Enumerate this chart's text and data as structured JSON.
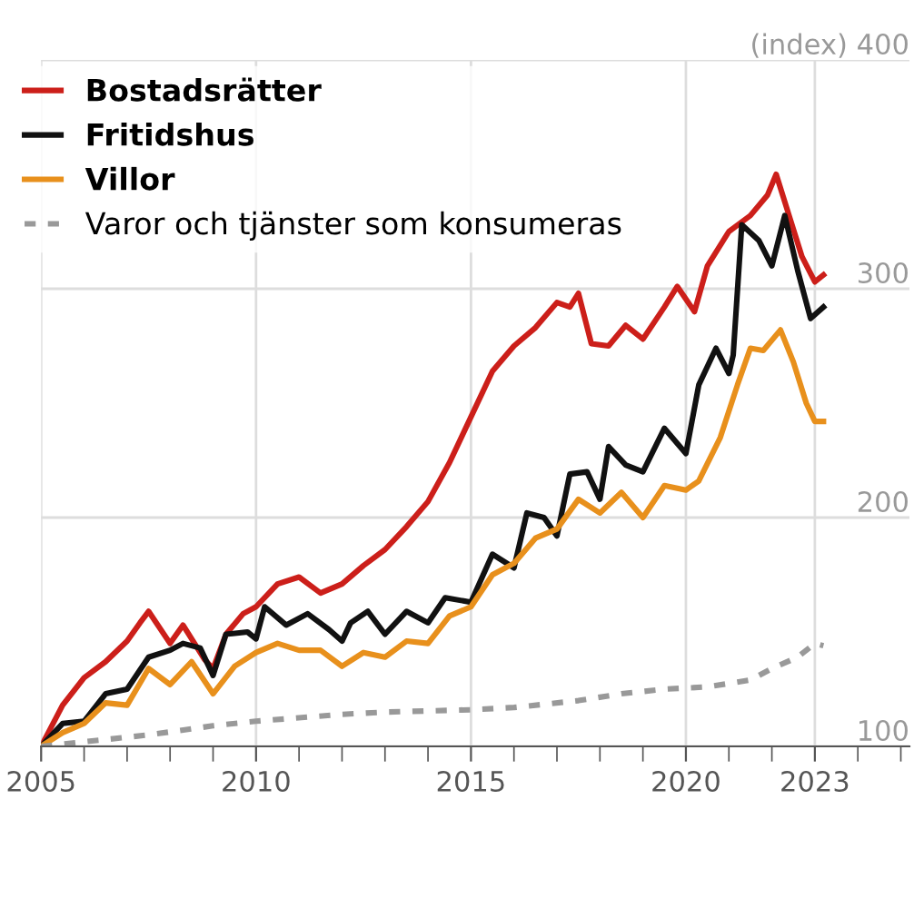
{
  "chart_data": {
    "type": "line",
    "xlim": [
      2005,
      2025.2
    ],
    "xticks": [
      2005,
      2010,
      2015,
      2020,
      2023
    ],
    "ylim": [
      100,
      400
    ],
    "yticks": [
      100,
      200,
      300,
      {
        "value": 400,
        "label": "(index) 400"
      }
    ],
    "grid": true,
    "legend": "top left",
    "line_style": "solid",
    "series": [
      {
        "name": "Bostadsrätter",
        "color": "#cc1f1a",
        "x": [
          2005,
          2005.5,
          2006,
          2006.5,
          2007,
          2007.3,
          2007.5,
          2008,
          2008.3,
          2008.8,
          2009,
          2009.3,
          2009.7,
          2010,
          2010.5,
          2011,
          2011.5,
          2012,
          2012.5,
          2013,
          2013.5,
          2014,
          2014.5,
          2015,
          2015.5,
          2016,
          2016.5,
          2017,
          2017.3,
          2017.5,
          2017.8,
          2018.2,
          2018.6,
          2019,
          2019.5,
          2019.8,
          2020.2,
          2020.5,
          2021,
          2021.5,
          2021.9,
          2022.1,
          2022.4,
          2022.7,
          2023,
          2023.2
        ],
        "values": [
          100,
          118,
          130,
          137,
          146,
          154,
          159,
          145,
          153,
          138,
          134,
          149,
          158,
          161,
          171,
          174,
          167,
          171,
          179,
          186,
          196,
          207,
          224,
          244,
          264,
          275,
          283,
          294,
          292,
          298,
          276,
          275,
          284,
          278,
          292,
          301,
          290,
          310,
          325,
          332,
          341,
          350,
          332,
          314,
          303,
          306
        ]
      },
      {
        "name": "Fritidshus",
        "color": "#111111",
        "x": [
          2005,
          2005.5,
          2006,
          2006.5,
          2007,
          2007.5,
          2008,
          2008.3,
          2008.7,
          2009,
          2009.3,
          2009.8,
          2010,
          2010.2,
          2010.7,
          2011.2,
          2011.7,
          2012,
          2012.2,
          2012.6,
          2013,
          2013.5,
          2014,
          2014.4,
          2015,
          2015.5,
          2016,
          2016.3,
          2016.7,
          2017,
          2017.3,
          2017.7,
          2018,
          2018.2,
          2018.6,
          2019,
          2019.5,
          2020,
          2020.3,
          2020.7,
          2021,
          2021.1,
          2021.3,
          2021.7,
          2022,
          2022.3,
          2022.6,
          2022.9,
          2023.2
        ],
        "values": [
          100,
          110,
          111,
          123,
          125,
          139,
          142,
          145,
          143,
          131,
          149,
          150,
          147,
          161,
          153,
          158,
          151,
          146,
          154,
          159,
          149,
          159,
          154,
          165,
          163,
          184,
          178,
          202,
          200,
          192,
          219,
          220,
          208,
          231,
          223,
          220,
          239,
          228,
          258,
          274,
          263,
          271,
          328,
          321,
          310,
          332,
          308,
          287,
          292
        ]
      },
      {
        "name": "Villor",
        "color": "#e8901c",
        "x": [
          2005,
          2005.5,
          2006,
          2006.5,
          2007,
          2007.5,
          2008,
          2008.5,
          2009,
          2009.5,
          2010,
          2010.5,
          2011,
          2011.5,
          2012,
          2012.5,
          2013,
          2013.5,
          2014,
          2014.5,
          2015,
          2015.5,
          2016,
          2016.5,
          2017,
          2017.5,
          2018,
          2018.5,
          2019,
          2019.5,
          2020,
          2020.3,
          2020.8,
          2021.2,
          2021.5,
          2021.8,
          2022.2,
          2022.5,
          2022.8,
          2023,
          2023.2
        ],
        "values": [
          100,
          106,
          110,
          119,
          118,
          134,
          127,
          137,
          123,
          135,
          141,
          145,
          142,
          142,
          135,
          141,
          139,
          146,
          145,
          157,
          161,
          175,
          180,
          191,
          195,
          208,
          202,
          211,
          200,
          214,
          212,
          216,
          235,
          258,
          274,
          273,
          282,
          268,
          250,
          242,
          242
        ]
      },
      {
        "name": "Varor och tjänster som konsumeras",
        "color": "#999999",
        "line_style": "dashed",
        "x": [
          2005,
          2006,
          2007.5,
          2009,
          2010,
          2012,
          2013,
          2015,
          2016,
          2017.5,
          2018.5,
          2019.5,
          2020.5,
          2021.5,
          2022,
          2022.6,
          2023,
          2023.2
        ],
        "values": [
          100,
          102,
          105,
          109,
          111,
          114,
          115,
          116,
          117,
          120,
          123,
          125,
          126,
          129,
          134,
          139,
          145,
          144
        ]
      }
    ]
  }
}
